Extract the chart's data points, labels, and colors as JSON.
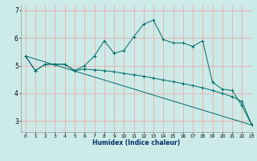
{
  "title": "",
  "xlabel": "Humidex (Indice chaleur)",
  "ylabel": "",
  "background_color": "#cceae7",
  "grid_color": "#f5a0a0",
  "line_color": "#006b6b",
  "xlim": [
    -0.5,
    23
  ],
  "ylim": [
    2.6,
    7.2
  ],
  "yticks": [
    3,
    4,
    5,
    6,
    7
  ],
  "xticks": [
    0,
    1,
    2,
    3,
    4,
    5,
    6,
    7,
    8,
    9,
    10,
    11,
    12,
    13,
    14,
    15,
    16,
    17,
    18,
    19,
    20,
    21,
    22,
    23
  ],
  "line1_x": [
    0,
    1,
    2,
    3,
    4,
    5,
    6,
    7,
    8,
    9,
    10,
    11,
    12,
    13,
    14,
    15,
    16,
    17,
    18,
    19,
    20,
    21,
    22,
    23
  ],
  "line1_y": [
    5.35,
    4.82,
    5.05,
    5.05,
    5.05,
    4.82,
    5.0,
    5.35,
    5.9,
    5.45,
    5.55,
    6.05,
    6.5,
    6.65,
    5.95,
    5.82,
    5.82,
    5.7,
    5.9,
    4.4,
    4.15,
    4.1,
    3.55,
    2.85
  ],
  "line2_x": [
    0,
    1,
    2,
    3,
    4,
    5,
    6,
    7,
    8,
    9,
    10,
    11,
    12,
    13,
    14,
    15,
    16,
    17,
    18,
    19,
    20,
    21,
    22,
    23
  ],
  "line2_y": [
    5.35,
    4.82,
    5.05,
    5.05,
    5.05,
    4.82,
    4.88,
    4.85,
    4.82,
    4.78,
    4.72,
    4.67,
    4.62,
    4.55,
    4.48,
    4.42,
    4.35,
    4.28,
    4.2,
    4.1,
    4.0,
    3.88,
    3.7,
    2.85
  ],
  "line3_x": [
    0,
    23
  ],
  "line3_y": [
    5.35,
    2.85
  ]
}
